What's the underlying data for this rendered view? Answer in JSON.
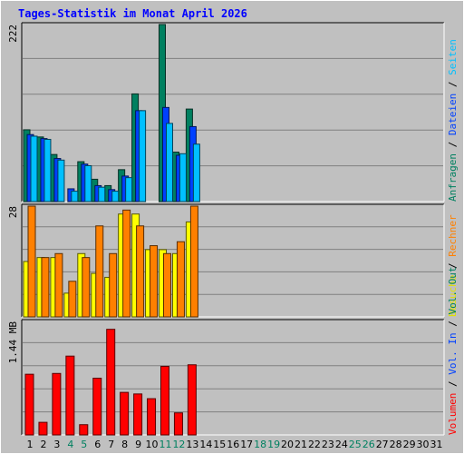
{
  "chart_data": {
    "title": "Tages-Statistik im Monat April 2026",
    "type": "bar",
    "x_days": [
      "1",
      "2",
      "3",
      "4",
      "5",
      "6",
      "7",
      "8",
      "9",
      "10",
      "11",
      "12",
      "13",
      "14",
      "15",
      "16",
      "17",
      "18",
      "19",
      "20",
      "21",
      "22",
      "23",
      "24",
      "25",
      "26",
      "27",
      "28",
      "29",
      "30",
      "31"
    ],
    "weekend_days": [
      "4",
      "5",
      "11",
      "12",
      "18",
      "19",
      "25",
      "26"
    ],
    "panels": [
      {
        "id": "requests",
        "ymax_label": "222",
        "ymax": 222,
        "right_labels": [
          {
            "text": "Anfragen",
            "color": "#008060"
          },
          {
            "text": " / ",
            "color": "#000000"
          },
          {
            "text": "Dateien",
            "color": "#0040ff"
          },
          {
            "text": " / ",
            "color": "#000000"
          },
          {
            "text": "Seiten",
            "color": "#00c0ff"
          }
        ],
        "series": [
          {
            "name": "Anfragen",
            "color": "#008060",
            "values": [
              90,
              81,
              59,
              0,
              50,
              28,
              20,
              40,
              135,
              0,
              222,
              62,
              116
            ]
          },
          {
            "name": "Dateien",
            "color": "#0040ff",
            "values": [
              84,
              79,
              54,
              16,
              47,
              20,
              15,
              32,
              114,
              0,
              118,
              58,
              94
            ]
          },
          {
            "name": "Seiten",
            "color": "#00c0ff",
            "values": [
              82,
              78,
              52,
              13,
              45,
              18,
              13,
              30,
              114,
              0,
              98,
              60,
              72
            ]
          }
        ]
      },
      {
        "id": "visits",
        "ymax_label": "28",
        "ymax": 28,
        "right_labels": [
          {
            "text": "Besuche",
            "color": "#e0e000"
          },
          {
            "text": " / ",
            "color": "#000000"
          },
          {
            "text": "Rechner",
            "color": "#ff8000"
          }
        ],
        "series": [
          {
            "name": "Besuche",
            "color": "#ffff00",
            "values": [
              14,
              15,
              15,
              6,
              16,
              11,
              10,
              26,
              26,
              17,
              17,
              16,
              24
            ]
          },
          {
            "name": "Rechner",
            "color": "#ff8000",
            "values": [
              28,
              15,
              16,
              9,
              15,
              23,
              16,
              27,
              23,
              18,
              16,
              19,
              28
            ]
          }
        ]
      },
      {
        "id": "volume",
        "ymax_label": "1.44 MB",
        "ymax": 1.44,
        "right_labels": [
          {
            "text": "Volumen",
            "color": "#ff0000"
          },
          {
            "text": " / ",
            "color": "#000000"
          },
          {
            "text": "Vol. In",
            "color": "#0040ff"
          },
          {
            "text": " / ",
            "color": "#000000"
          },
          {
            "text": "Vol. Out",
            "color": "#008060"
          }
        ],
        "series": [
          {
            "name": "Volumen",
            "color": "#ff0000",
            "values": [
              0.77,
              0.16,
              0.78,
              1.0,
              0.13,
              0.72,
              1.34,
              0.54,
              0.52,
              0.46,
              0.87,
              0.28,
              0.89
            ]
          }
        ]
      }
    ]
  }
}
